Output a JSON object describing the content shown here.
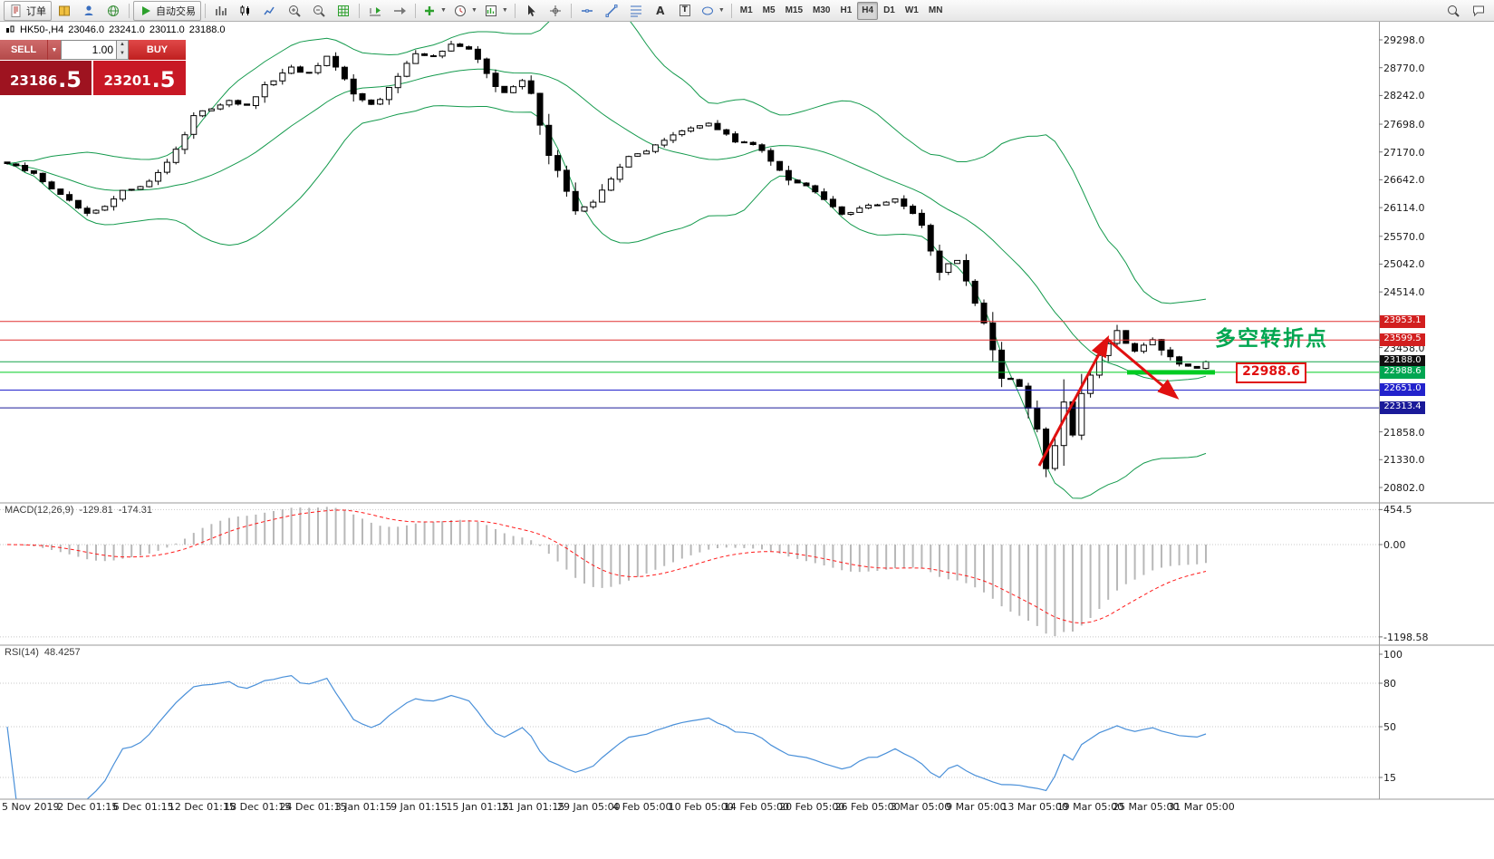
{
  "toolbar": {
    "order_label": "订单",
    "autotrade_label": "自动交易",
    "timeframes": [
      "M1",
      "M5",
      "M15",
      "M30",
      "H1",
      "H4",
      "D1",
      "W1",
      "MN"
    ],
    "active_timeframe": "H4",
    "icons": [
      "new-order-icon",
      "accounts-icon",
      "contacts-icon",
      "web-icon",
      "autotrade-play-icon",
      "bar-chart-icon",
      "candlestick-chart-icon",
      "line-chart-icon",
      "zoom-in-icon",
      "zoom-out-icon",
      "tile-windows-icon",
      "chart-shift-icon",
      "auto-scroll-icon",
      "add-indicator-icon",
      "periods-clock-icon",
      "template-icon",
      "cursor-icon",
      "crosshair-icon",
      "horizontal-line-icon",
      "trendline-icon",
      "fibonacci-icon",
      "text-icon",
      "text-label-icon",
      "shapes-icon",
      "search-icon",
      "chat-icon"
    ]
  },
  "symbol_bar": {
    "symbol_period": "HK50-,H4",
    "open": "23046.0",
    "high": "23241.0",
    "low": "23011.0",
    "close": "23188.0"
  },
  "trade_panel": {
    "sell_label": "SELL",
    "buy_label": "BUY",
    "volume": "1.00",
    "sell_price": "23186.5",
    "buy_price": "23201.5"
  },
  "annotations": {
    "turning_point": "多空转折点",
    "price_callout": "22988.6"
  },
  "colors": {
    "bull_candle": "#ffffff",
    "bear_candle": "#000000",
    "bollinger": "#149a4d",
    "macd_histogram": "#b8b8b8",
    "macd_signal": "#ff1a1a",
    "rsi_line": "#4a90d9",
    "arrow_red": "#e01010",
    "object_green": "#00cc22",
    "annotation_green": "#00a651"
  },
  "chart_data": {
    "type": "candlestick",
    "symbol": "HK50-",
    "timeframe": "H4",
    "indicators_overlaid": "Bollinger Bands (green)",
    "price_axis": [
      {
        "t": "29298.0",
        "v": 29298
      },
      {
        "t": "28770.0",
        "v": 28770
      },
      {
        "t": "28242.0",
        "v": 28242
      },
      {
        "t": "27698.0",
        "v": 27698
      },
      {
        "t": "27170.0",
        "v": 27170
      },
      {
        "t": "26642.0",
        "v": 26642
      },
      {
        "t": "26114.0",
        "v": 26114
      },
      {
        "t": "25570.0",
        "v": 25570
      },
      {
        "t": "25042.0",
        "v": 25042
      },
      {
        "t": "24514.0",
        "v": 24514
      },
      {
        "t": "23458.0",
        "v": 23458
      },
      {
        "t": "21858.0",
        "v": 21858
      },
      {
        "t": "21330.0",
        "v": 21330
      },
      {
        "t": "20802.0",
        "v": 20802
      }
    ],
    "hlines": [
      {
        "price": 23953.1,
        "text": "23953.1",
        "color": "#e03131",
        "label_bg": "#d21f1f",
        "thick": false
      },
      {
        "price": 23599.5,
        "text": "23599.5",
        "color": "#e03131",
        "label_bg": "#d21f1f",
        "thick": false
      },
      {
        "price": 23188.0,
        "text": "23188.0",
        "color": "#16a34a",
        "label_bg": "#111111",
        "thick": false
      },
      {
        "price": 22988.6,
        "text": "22988.6",
        "color": "#00cc22",
        "label_bg": "#00a651",
        "thick": true
      },
      {
        "price": 22651.0,
        "text": "22651.0",
        "color": "#2222cc",
        "label_bg": "#2222cc",
        "thick": false
      },
      {
        "price": 22313.4,
        "text": "22313.4",
        "color": "#1a1a99",
        "label_bg": "#1a1a99",
        "thick": false
      }
    ],
    "close_path_anchors": [
      [
        0,
        26950
      ],
      [
        3,
        26750
      ],
      [
        6,
        26350
      ],
      [
        9,
        25980
      ],
      [
        11,
        26120
      ],
      [
        13,
        26420
      ],
      [
        16,
        26600
      ],
      [
        18,
        26980
      ],
      [
        20,
        27500
      ],
      [
        21,
        27850
      ],
      [
        23,
        28000
      ],
      [
        25,
        28160
      ],
      [
        27,
        28030
      ],
      [
        29,
        28420
      ],
      [
        32,
        28760
      ],
      [
        34,
        28650
      ],
      [
        36,
        28960
      ],
      [
        38,
        28550
      ],
      [
        39,
        28260
      ],
      [
        41,
        28100
      ],
      [
        42,
        28160
      ],
      [
        44,
        28600
      ],
      [
        46,
        29060
      ],
      [
        48,
        28980
      ],
      [
        50,
        29210
      ],
      [
        52,
        29100
      ],
      [
        53,
        28940
      ],
      [
        55,
        28420
      ],
      [
        56,
        28280
      ],
      [
        58,
        28520
      ],
      [
        59,
        28300
      ],
      [
        61,
        27100
      ],
      [
        62,
        26800
      ],
      [
        64,
        26060
      ],
      [
        66,
        26200
      ],
      [
        67,
        26450
      ],
      [
        69,
        26900
      ],
      [
        70,
        27060
      ],
      [
        72,
        27200
      ],
      [
        73,
        27320
      ],
      [
        75,
        27480
      ],
      [
        76,
        27560
      ],
      [
        78,
        27660
      ],
      [
        79,
        27720
      ],
      [
        81,
        27500
      ],
      [
        82,
        27360
      ],
      [
        84,
        27300
      ],
      [
        85,
        27200
      ],
      [
        87,
        26840
      ],
      [
        88,
        26660
      ],
      [
        90,
        26520
      ],
      [
        91,
        26440
      ],
      [
        93,
        26150
      ],
      [
        94,
        26000
      ],
      [
        96,
        26080
      ],
      [
        97,
        26160
      ],
      [
        99,
        26220
      ],
      [
        100,
        26260
      ],
      [
        102,
        26020
      ],
      [
        103,
        25780
      ],
      [
        104,
        25300
      ],
      [
        105,
        24900
      ],
      [
        106,
        25050
      ],
      [
        107,
        25120
      ],
      [
        108,
        24700
      ],
      [
        109,
        24300
      ],
      [
        110,
        23900
      ],
      [
        111,
        23400
      ],
      [
        112,
        22900
      ],
      [
        113,
        22850
      ],
      [
        114,
        22700
      ],
      [
        115,
        22300
      ],
      [
        116,
        21900
      ],
      [
        117,
        21150
      ],
      [
        118,
        21600
      ],
      [
        119,
        22400
      ],
      [
        120,
        21800
      ],
      [
        121,
        22600
      ],
      [
        122,
        22950
      ],
      [
        123,
        23300
      ],
      [
        124,
        23550
      ],
      [
        125,
        23780
      ],
      [
        126,
        23560
      ],
      [
        127,
        23400
      ],
      [
        128,
        23500
      ],
      [
        129,
        23620
      ],
      [
        130,
        23420
      ],
      [
        131,
        23260
      ],
      [
        132,
        23150
      ],
      [
        133,
        23100
      ],
      [
        134,
        23050
      ],
      [
        135,
        23188
      ]
    ],
    "bollinger": {
      "period": 20,
      "deviation": 2
    },
    "indicators": {
      "macd": {
        "name": "MACD(12,26,9)",
        "value_main": "-129.81",
        "value_signal": "-174.31",
        "axis": [
          {
            "t": "454.5",
            "v": 454.5
          },
          {
            "t": "0.00",
            "v": 0
          },
          {
            "t": "-1198.58",
            "v": -1198.58
          }
        ]
      },
      "rsi": {
        "name": "RSI(14)",
        "value": "48.4257",
        "axis": [
          {
            "t": "100",
            "v": 100
          },
          {
            "t": "80",
            "v": 80
          },
          {
            "t": "50",
            "v": 50
          },
          {
            "t": "15",
            "v": 15
          }
        ],
        "levels": [
          80,
          50,
          15
        ]
      }
    },
    "time_axis": [
      "5 Nov 2019",
      "2 Dec 01:15",
      "6 Dec 01:15",
      "12 Dec 01:15",
      "18 Dec 01:15",
      "24 Dec 01:15",
      "3 Jan 01:15",
      "9 Jan 01:15",
      "15 Jan 01:15",
      "21 Jan 01:15",
      "29 Jan 05:00",
      "4 Feb 05:00",
      "10 Feb 05:00",
      "14 Feb 05:00",
      "20 Feb 05:00",
      "26 Feb 05:00",
      "3 Mar 05:00",
      "9 Mar 05:00",
      "13 Mar 05:00",
      "19 Mar 05:00",
      "25 Mar 05:00",
      "31 Mar 05:00"
    ]
  }
}
